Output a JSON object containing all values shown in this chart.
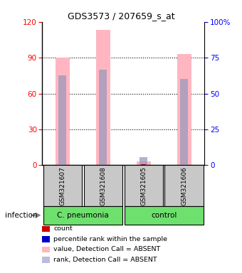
{
  "title": "GDS3573 / 207659_s_at",
  "samples": [
    "GSM321607",
    "GSM321608",
    "GSM321605",
    "GSM321606"
  ],
  "bar_colors_pink": "#FFB6C1",
  "bar_colors_blue_rank": "#9999BB",
  "bar_colors_red": "#CC0000",
  "bar_colors_blue_pct": "#0000CC",
  "values_pink": [
    90,
    113,
    3,
    93
  ],
  "values_blue_rank": [
    75,
    80,
    7,
    72
  ],
  "values_red": [
    0,
    0,
    1,
    0
  ],
  "ylim_left": [
    0,
    120
  ],
  "ylim_right": [
    0,
    100
  ],
  "yticks_left": [
    0,
    30,
    60,
    90,
    120
  ],
  "yticks_right": [
    0,
    25,
    50,
    75,
    100
  ],
  "ytick_labels_right": [
    "0",
    "25",
    "50",
    "75",
    "100%"
  ],
  "title_fontsize": 9,
  "legend_items": [
    {
      "label": "count",
      "color": "#CC0000"
    },
    {
      "label": "percentile rank within the sample",
      "color": "#0000CC"
    },
    {
      "label": "value, Detection Call = ABSENT",
      "color": "#FFB6C1"
    },
    {
      "label": "rank, Detection Call = ABSENT",
      "color": "#BBBBDD"
    }
  ],
  "cpneumonia_color": "#6EE06E",
  "control_color": "#6EE06E",
  "sample_box_color": "#C8C8C8",
  "bar_width": 0.35
}
